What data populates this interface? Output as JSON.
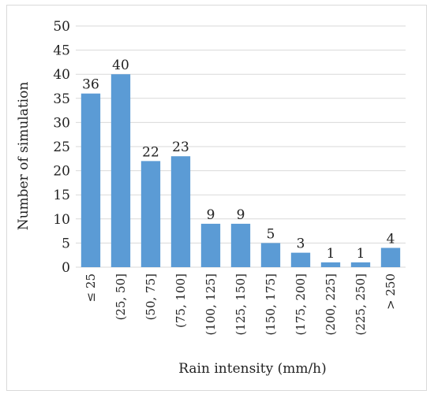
{
  "chart_data": {
    "type": "bar",
    "title": "",
    "xlabel": "Rain intensity (mm/h)",
    "ylabel": "Number of simulation",
    "ylim": [
      0,
      50
    ],
    "yticks": [
      0,
      5,
      10,
      15,
      20,
      25,
      30,
      35,
      40,
      45,
      50
    ],
    "grid": true,
    "legend": "none",
    "bar_color": "#5b9bd5",
    "gridline_color": "#d9d9d9",
    "categories": [
      "≤ 25",
      "(25, 50]",
      "(50, 75]",
      "(75, 100]",
      "(100, 125]",
      "(125, 150]",
      "(150, 175]",
      "(175, 200]",
      "(200, 225]",
      "(225, 250]",
      "> 250"
    ],
    "values": [
      36,
      40,
      22,
      23,
      9,
      9,
      5,
      3,
      1,
      1,
      4
    ],
    "data_labels": [
      "36",
      "40",
      "22",
      "23",
      "9",
      "9",
      "5",
      "3",
      "1",
      "1",
      "4"
    ]
  }
}
